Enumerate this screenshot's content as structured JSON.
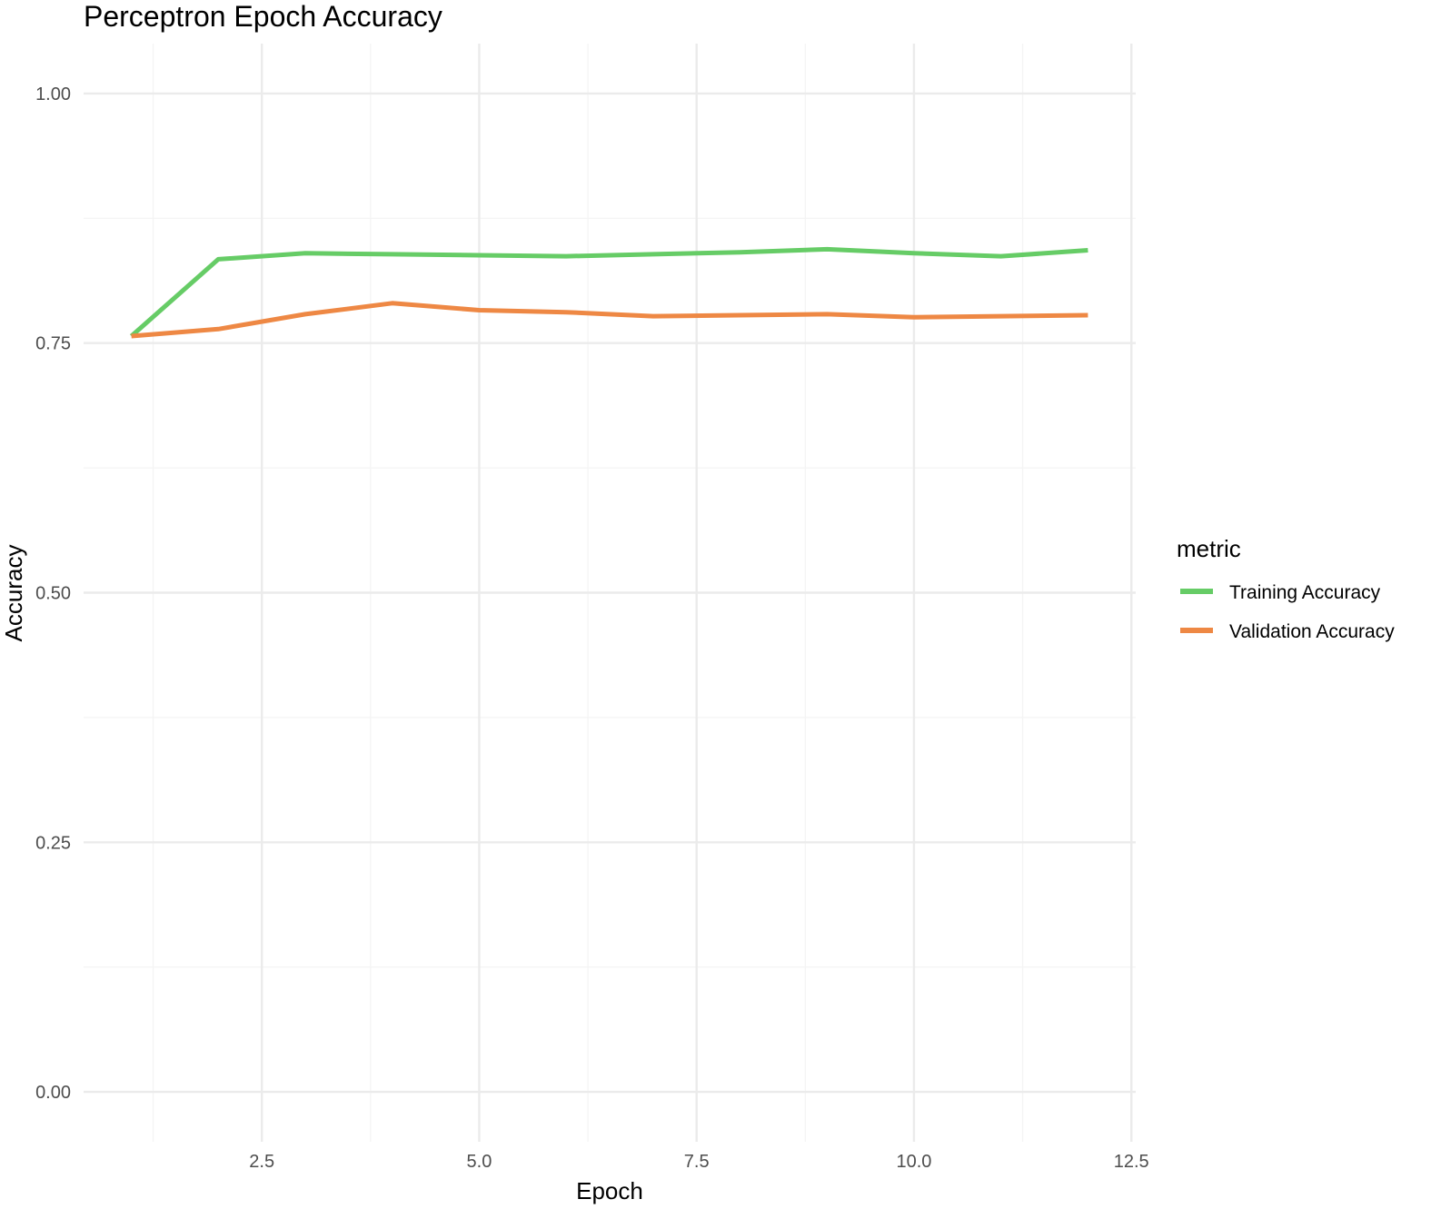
{
  "chart_data": {
    "type": "line",
    "title": "Perceptron Epoch Accuracy",
    "xlabel": "Epoch",
    "ylabel": "Accuracy",
    "xlim": [
      0.45,
      12.55
    ],
    "ylim": [
      -0.05,
      1.05
    ],
    "x_ticks": [
      2.5,
      5.0,
      7.5,
      10.0,
      12.5
    ],
    "x_tick_labels": [
      "2.5",
      "5.0",
      "7.5",
      "10.0",
      "12.5"
    ],
    "y_ticks": [
      0.0,
      0.25,
      0.5,
      0.75,
      1.0
    ],
    "y_tick_labels": [
      "0.00",
      "0.25",
      "0.50",
      "0.75",
      "1.00"
    ],
    "x_minor_ticks": [
      1.25,
      3.75,
      6.25,
      8.75,
      11.25
    ],
    "y_minor_ticks": [
      0.125,
      0.375,
      0.625,
      0.875
    ],
    "grid": true,
    "legend_title": "metric",
    "legend_position": "right",
    "x": [
      1,
      2,
      3,
      4,
      5,
      6,
      7,
      8,
      9,
      10,
      11,
      12
    ],
    "series": [
      {
        "name": "Training Accuracy",
        "color": "#66cc66",
        "values": [
          0.757,
          0.834,
          0.84,
          0.839,
          0.838,
          0.837,
          0.839,
          0.841,
          0.844,
          0.84,
          0.837,
          0.843
        ]
      },
      {
        "name": "Validation Accuracy",
        "color": "#ee8844",
        "values": [
          0.757,
          0.764,
          0.779,
          0.79,
          0.783,
          0.781,
          0.777,
          0.778,
          0.779,
          0.776,
          0.777,
          0.778
        ]
      }
    ]
  }
}
